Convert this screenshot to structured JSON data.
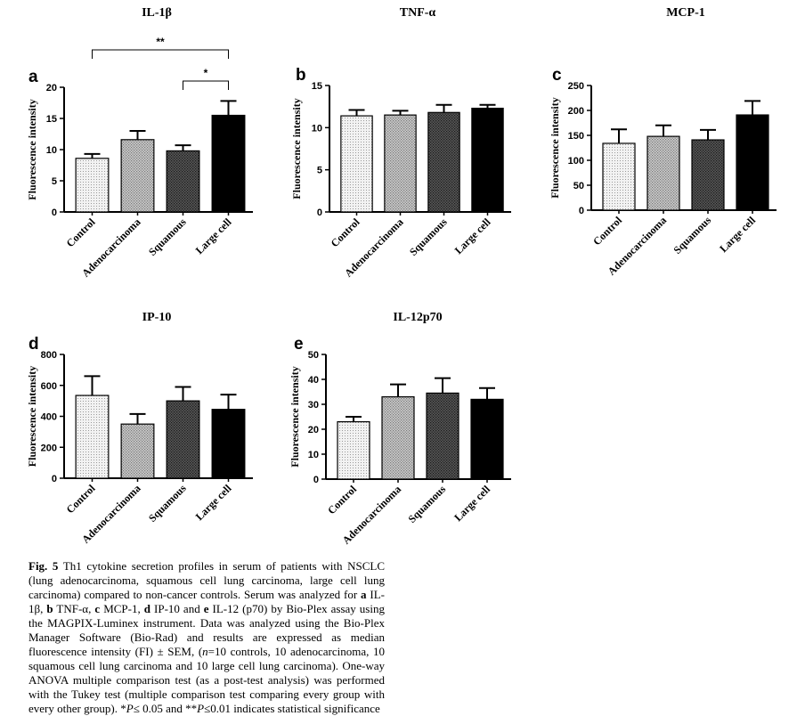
{
  "chart_data": [
    {
      "panel": "a",
      "title": "IL-1β",
      "type": "bar",
      "ylabel": "Fluorescence intensity",
      "categories": [
        "Control",
        "Adenocarcinoma",
        "Squamous",
        "Large cell"
      ],
      "values": [
        8.6,
        11.6,
        9.8,
        15.5
      ],
      "errors": [
        0.7,
        1.4,
        0.9,
        2.3
      ],
      "ylim": [
        0,
        20
      ],
      "yticks": [
        0,
        5,
        10,
        15,
        20
      ],
      "significance": [
        {
          "from": 0,
          "to": 3,
          "label": "**",
          "y": 26
        },
        {
          "from": 2,
          "to": 3,
          "label": "*",
          "y": 21
        }
      ]
    },
    {
      "panel": "b",
      "title": "TNF-α",
      "type": "bar",
      "ylabel": "Fluorescence intensity",
      "categories": [
        "Control",
        "Adenocarcinoma",
        "Squamous",
        "Large cell"
      ],
      "values": [
        11.4,
        11.5,
        11.8,
        12.3
      ],
      "errors": [
        0.7,
        0.5,
        0.9,
        0.4
      ],
      "ylim": [
        0,
        15
      ],
      "yticks": [
        0,
        5,
        10,
        15
      ]
    },
    {
      "panel": "c",
      "title": "MCP-1",
      "type": "bar",
      "ylabel": "Fluorescence intensity",
      "categories": [
        "Control",
        "Adenocarcinoma",
        "Squamous",
        "Large cell"
      ],
      "values": [
        134,
        148,
        141,
        191
      ],
      "errors": [
        28,
        22,
        20,
        28
      ],
      "ylim": [
        0,
        250
      ],
      "yticks": [
        0,
        50,
        100,
        150,
        200,
        250
      ]
    },
    {
      "panel": "d",
      "title": "IP-10",
      "type": "bar",
      "ylabel": "Fluorescence intensity",
      "categories": [
        "Control",
        "Adenocarcinoma",
        "Squamous",
        "Large cell"
      ],
      "values": [
        535,
        350,
        500,
        445
      ],
      "errors": [
        125,
        65,
        90,
        95
      ],
      "ylim": [
        0,
        800
      ],
      "yticks": [
        0,
        200,
        400,
        600,
        800
      ]
    },
    {
      "panel": "e",
      "title": "IL-12p70",
      "type": "bar",
      "ylabel": "Fluorescence intensity",
      "categories": [
        "Control",
        "Adenocarcinoma",
        "Squamous",
        "Large cell"
      ],
      "values": [
        23,
        33,
        34.5,
        32
      ],
      "errors": [
        2,
        5,
        6,
        4.5
      ],
      "ylim": [
        0,
        50
      ],
      "yticks": [
        0,
        10,
        20,
        30,
        40,
        50
      ]
    }
  ],
  "caption": {
    "label": "Fig. 5",
    "text_1": " Th1 cytokine secretion profiles in serum of patients with NSCLC (lung adenocarcinoma, squamous cell lung carcinoma, large cell lung carcinoma) compared to non-cancer controls. Serum was analyzed for ",
    "a": "a",
    "il1": " IL-1β, ",
    "b": "b",
    "tnf": " TNF-α, ",
    "c": "c",
    "mcp": " MCP-1, ",
    "d": "d",
    "ip": " IP-10 and ",
    "e": "e",
    "il12": " IL-12 (p70) by Bio-Plex assay using the MAGPIX-Luminex instrument. Data was analyzed using the Bio-Plex Manager Software (Bio-Rad) and results are expressed as median fluorescence intensity (FI) ± SEM, (",
    "n": "n",
    "text_2": "=10 controls, 10 adenocarcinoma, 10 squamous cell lung carcinoma and 10 large cell lung carcinoma). One-way ANOVA multiple comparison test (as a post-test analysis) was performed with the Tukey test (multiple comparison test comparing every group with every other group). *",
    "p1": "P",
    "text_3": "≤ 0.05 and **",
    "p2": "P",
    "text_4": "≤0.01 indicates statistical significance"
  }
}
